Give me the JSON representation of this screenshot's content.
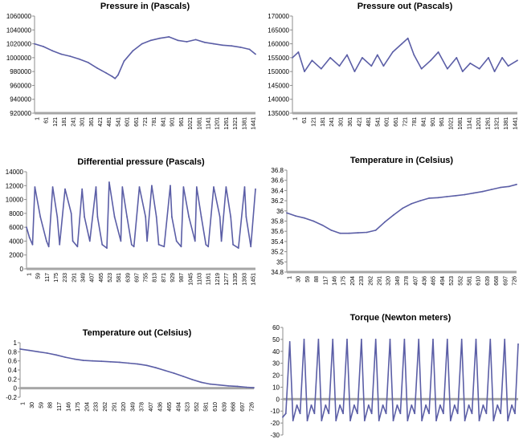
{
  "chart_data": [
    {
      "type": "line",
      "title": "Pressure in (Pascals)",
      "xlabel": "",
      "ylabel": "",
      "ylim": [
        920000,
        1060000
      ],
      "yticks": [
        "920000",
        "940000",
        "960000",
        "980000",
        "1000000",
        "1020000",
        "1040000",
        "1060000"
      ],
      "x_tick_labels": [
        "1",
        "61",
        "121",
        "181",
        "241",
        "301",
        "361",
        "421",
        "481",
        "541",
        "601",
        "661",
        "721",
        "781",
        "841",
        "901",
        "961",
        "1021",
        "1081",
        "1141",
        "1201",
        "1261",
        "1321",
        "1381",
        "1441"
      ],
      "x_range": [
        1,
        1480
      ],
      "grid": false,
      "series": [
        {
          "color": "#5b5ea6",
          "x": [
            1,
            60,
            120,
            180,
            240,
            300,
            360,
            420,
            480,
            520,
            540,
            560,
            600,
            660,
            720,
            780,
            840,
            900,
            960,
            1020,
            1080,
            1140,
            1200,
            1260,
            1320,
            1380,
            1440,
            1480
          ],
          "y": [
            1020000,
            1016000,
            1010000,
            1005000,
            1002000,
            998000,
            993000,
            985000,
            978000,
            973000,
            970000,
            975000,
            995000,
            1010000,
            1020000,
            1025000,
            1028000,
            1030000,
            1025000,
            1023000,
            1026000,
            1022000,
            1020000,
            1018000,
            1017000,
            1015000,
            1012000,
            1005000
          ]
        }
      ]
    },
    {
      "type": "line",
      "title": "Pressure out (Pascals)",
      "xlabel": "",
      "ylabel": "",
      "ylim": [
        135000,
        170000
      ],
      "yticks": [
        "135000",
        "140000",
        "145000",
        "150000",
        "155000",
        "160000",
        "165000",
        "170000"
      ],
      "x_tick_labels": [
        "1",
        "61",
        "121",
        "181",
        "241",
        "301",
        "361",
        "421",
        "481",
        "541",
        "601",
        "661",
        "721",
        "781",
        "841",
        "901",
        "961",
        "1021",
        "1081",
        "1141",
        "1201",
        "1261",
        "1321",
        "1381",
        "1441"
      ],
      "x_range": [
        1,
        1480
      ],
      "grid": false,
      "series": [
        {
          "color": "#5b5ea6",
          "x": [
            1,
            40,
            80,
            130,
            190,
            250,
            310,
            360,
            410,
            460,
            520,
            560,
            600,
            660,
            720,
            760,
            800,
            850,
            910,
            960,
            1020,
            1080,
            1120,
            1170,
            1230,
            1290,
            1330,
            1380,
            1420,
            1480
          ],
          "y": [
            155000,
            157000,
            150000,
            154000,
            151000,
            155000,
            152000,
            156000,
            150000,
            155000,
            152000,
            156000,
            152000,
            157000,
            160000,
            162000,
            156000,
            151000,
            154000,
            157000,
            151000,
            155000,
            150000,
            153000,
            151000,
            155000,
            150000,
            155000,
            152000,
            154000
          ]
        }
      ]
    },
    {
      "type": "line",
      "title": "Differential pressure (Pascals)",
      "xlabel": "",
      "ylabel": "",
      "ylim": [
        0,
        14000
      ],
      "yticks": [
        "0",
        "2000",
        "4000",
        "6000",
        "8000",
        "10000",
        "12000",
        "14000"
      ],
      "x_tick_labels": [
        "1",
        "59",
        "117",
        "175",
        "233",
        "291",
        "349",
        "407",
        "465",
        "523",
        "581",
        "639",
        "697",
        "755",
        "813",
        "871",
        "929",
        "987",
        "1045",
        "1103",
        "1161",
        "1219",
        "1277",
        "1335",
        "1393",
        "1451"
      ],
      "x_range": [
        1,
        1480
      ],
      "grid": false,
      "series": [
        {
          "color": "#5b5ea6",
          "x": [
            1,
            20,
            40,
            55,
            90,
            130,
            145,
            170,
            200,
            215,
            250,
            290,
            300,
            330,
            360,
            375,
            410,
            450,
            460,
            490,
            520,
            535,
            570,
            610,
            620,
            650,
            680,
            695,
            730,
            770,
            780,
            810,
            840,
            855,
            890,
            930,
            940,
            970,
            1000,
            1015,
            1050,
            1090,
            1100,
            1130,
            1160,
            1175,
            1210,
            1250,
            1260,
            1290,
            1320,
            1335,
            1370,
            1410,
            1420,
            1450,
            1480
          ],
          "y": [
            6000,
            4500,
            3500,
            11800,
            7500,
            4000,
            3200,
            11800,
            7500,
            3500,
            11500,
            8000,
            4000,
            3200,
            11500,
            7500,
            4000,
            11800,
            7500,
            3500,
            3000,
            12500,
            7500,
            4000,
            11800,
            7500,
            3500,
            3200,
            11800,
            7500,
            4000,
            12000,
            7500,
            3500,
            3200,
            12000,
            7500,
            4000,
            3200,
            11800,
            7500,
            4000,
            11800,
            7500,
            3500,
            3200,
            11800,
            7500,
            4000,
            11800,
            7500,
            3500,
            3000,
            11800,
            7500,
            3200,
            11500
          ]
        }
      ]
    },
    {
      "type": "line",
      "title": "Temperature in (Celsius)",
      "xlabel": "",
      "ylabel": "",
      "ylim": [
        34.8,
        36.8
      ],
      "yticks": [
        "34.8",
        "35",
        "35.2",
        "35.4",
        "35.6",
        "35.8",
        "36",
        "36.2",
        "36.4",
        "36.6",
        "36.8"
      ],
      "x_tick_labels": [
        "1",
        "30",
        "59",
        "88",
        "117",
        "146",
        "175",
        "204",
        "233",
        "262",
        "291",
        "320",
        "349",
        "378",
        "407",
        "436",
        "465",
        "494",
        "523",
        "552",
        "581",
        "610",
        "639",
        "668",
        "697",
        "726"
      ],
      "x_range": [
        1,
        750
      ],
      "grid": false,
      "series": [
        {
          "color": "#5b5ea6",
          "x": [
            1,
            30,
            59,
            88,
            117,
            146,
            175,
            204,
            233,
            262,
            291,
            320,
            349,
            378,
            407,
            436,
            465,
            494,
            523,
            552,
            581,
            610,
            639,
            668,
            697,
            726,
            750
          ],
          "y": [
            35.96,
            35.9,
            35.86,
            35.8,
            35.72,
            35.62,
            35.56,
            35.56,
            35.57,
            35.58,
            35.62,
            35.78,
            35.92,
            36.05,
            36.14,
            36.2,
            36.25,
            36.26,
            36.28,
            36.3,
            36.32,
            36.35,
            36.38,
            36.42,
            36.46,
            36.48,
            36.52
          ]
        }
      ]
    },
    {
      "type": "line",
      "title": "Temperature out (Celsius)",
      "xlabel": "",
      "ylabel": "",
      "ylim": [
        -0.2,
        1
      ],
      "yticks": [
        "-0.2",
        "0",
        "0.2",
        "0.4",
        "0.6",
        "0.8",
        "1"
      ],
      "x_tick_labels": [
        "1",
        "30",
        "59",
        "88",
        "117",
        "146",
        "175",
        "204",
        "233",
        "262",
        "291",
        "320",
        "349",
        "378",
        "407",
        "436",
        "465",
        "494",
        "523",
        "552",
        "581",
        "610",
        "639",
        "668",
        "697",
        "726"
      ],
      "x_range": [
        1,
        750
      ],
      "grid": false,
      "series": [
        {
          "color": "#5b5ea6",
          "x": [
            1,
            30,
            59,
            88,
            117,
            146,
            175,
            204,
            233,
            262,
            291,
            320,
            349,
            378,
            407,
            436,
            465,
            494,
            523,
            552,
            581,
            610,
            639,
            668,
            697,
            726,
            750
          ],
          "y": [
            0.86,
            0.83,
            0.8,
            0.77,
            0.73,
            0.68,
            0.64,
            0.61,
            0.6,
            0.59,
            0.58,
            0.57,
            0.55,
            0.53,
            0.5,
            0.45,
            0.39,
            0.33,
            0.26,
            0.19,
            0.13,
            0.09,
            0.07,
            0.05,
            0.04,
            0.02,
            0.01
          ]
        }
      ]
    },
    {
      "type": "line",
      "title": "Torque (Newton meters)",
      "xlabel": "",
      "ylabel": "",
      "ylim": [
        -30,
        60
      ],
      "yticks": [
        "-30",
        "-20",
        "-10",
        "0",
        "10",
        "20",
        "30",
        "40",
        "50",
        "60"
      ],
      "x_tick_labels": [
        "1",
        "57",
        "113",
        "169",
        "225",
        "281",
        "337",
        "393",
        "449",
        "505",
        "561",
        "617",
        "673",
        "729",
        "785",
        "841",
        "897",
        "953",
        "1009",
        "1065",
        "1121",
        "1177",
        "1233",
        "1289",
        "1345",
        "1401",
        "1457"
      ],
      "x_range": [
        1,
        1480
      ],
      "grid": false,
      "series": [
        {
          "color": "#5b5ea6",
          "x": [
            1,
            20,
            45,
            65,
            90,
            110,
            135,
            155,
            180,
            200,
            225,
            245,
            270,
            290,
            315,
            335,
            360,
            380,
            405,
            425,
            450,
            470,
            495,
            515,
            540,
            560,
            585,
            605,
            630,
            650,
            675,
            695,
            720,
            740,
            765,
            785,
            810,
            830,
            855,
            875,
            900,
            920,
            945,
            965,
            990,
            1010,
            1035,
            1055,
            1080,
            1100,
            1125,
            1145,
            1170,
            1190,
            1215,
            1235,
            1260,
            1280,
            1305,
            1325,
            1350,
            1370,
            1395,
            1415,
            1440,
            1460,
            1480
          ],
          "y": [
            -15,
            -12,
            48,
            -18,
            -5,
            -12,
            50,
            -18,
            -5,
            -12,
            50,
            -18,
            -5,
            -12,
            50,
            -18,
            -5,
            -12,
            50,
            -18,
            -5,
            -12,
            50,
            -18,
            -5,
            -12,
            50,
            -18,
            -5,
            -12,
            50,
            -18,
            -5,
            -12,
            50,
            -18,
            -5,
            -12,
            50,
            -18,
            -5,
            -12,
            50,
            -18,
            -5,
            -12,
            50,
            -18,
            -5,
            -12,
            50,
            -18,
            -5,
            -12,
            50,
            -18,
            -5,
            -12,
            50,
            -18,
            -5,
            -12,
            50,
            -18,
            -5,
            -12,
            46
          ]
        }
      ]
    }
  ]
}
